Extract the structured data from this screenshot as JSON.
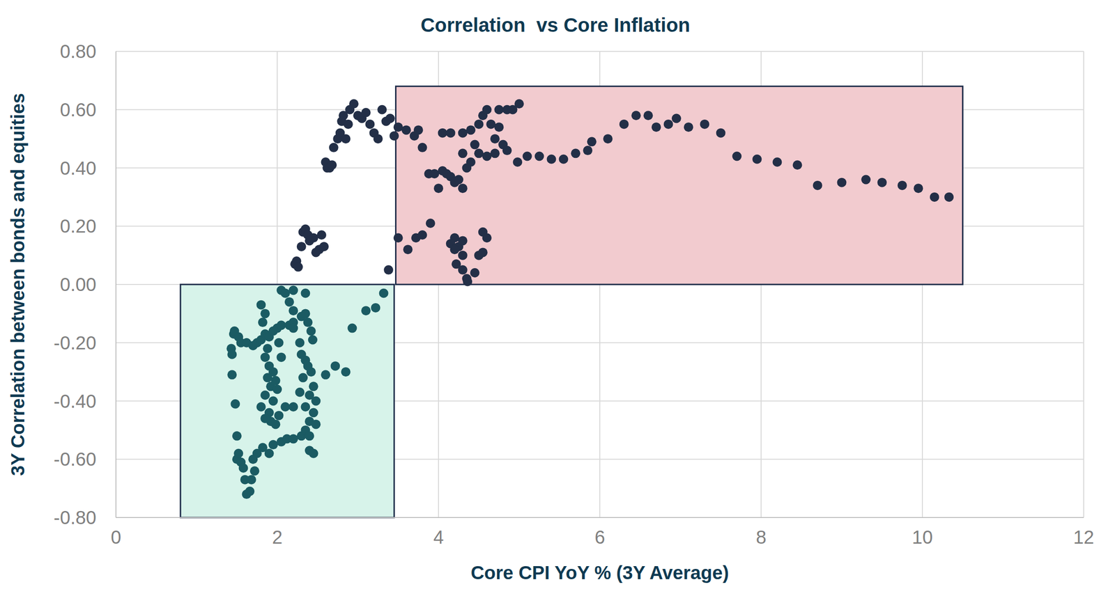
{
  "chart_data": {
    "type": "scatter",
    "title": "Correlation  vs Core Inflation",
    "x_label": "Core CPI YoY % (3Y Average)",
    "y_label": "3Y Correlation between bonds and equities",
    "xlim": [
      0,
      12
    ],
    "xticks": [
      0,
      2,
      4,
      6,
      8,
      10,
      12
    ],
    "ylim": [
      -0.8,
      0.8
    ],
    "yticks": [
      {
        "value": -0.8,
        "label": "-0.80"
      },
      {
        "value": -0.6,
        "label": "-0.60"
      },
      {
        "value": -0.4,
        "label": "-0.40"
      },
      {
        "value": -0.2,
        "label": "-0.20"
      },
      {
        "value": 0,
        "label": "0.00"
      },
      {
        "value": 0.2,
        "label": "0.20"
      },
      {
        "value": 0.4,
        "label": "0.40"
      },
      {
        "value": 0.6,
        "label": "0.60"
      },
      {
        "value": 0.8,
        "label": "0.80"
      }
    ],
    "grid": true,
    "marker": "circle",
    "regions": [
      {
        "x": [
          0.8,
          3.45
        ],
        "y": [
          -0.8,
          0
        ],
        "color": "#d7f3ea"
      },
      {
        "x": [
          3.47,
          10.5
        ],
        "y": [
          0,
          0.68
        ],
        "color": "#f2cbcf"
      }
    ],
    "series": [
      {
        "color": "#1b5b63",
        "x": [
          1.43,
          1.44,
          1.44,
          1.46,
          1.47,
          1.48,
          1.5,
          1.5,
          1.52,
          1.55,
          1.58,
          1.6,
          1.62,
          1.66,
          1.68,
          1.72,
          1.7,
          1.75,
          1.82,
          1.9,
          1.95,
          2.05,
          2.12,
          2.2,
          2.3,
          2.35,
          2.4,
          2.45,
          1.52,
          1.55,
          1.62,
          1.7,
          1.75,
          1.8,
          1.85,
          1.9,
          1.95,
          2.0,
          2.05,
          2.15,
          2.2,
          2.3,
          2.35,
          2.38,
          2.42,
          2.44,
          2.05,
          2.1,
          2.2,
          2.35,
          2.15,
          2.2,
          1.8,
          1.85,
          1.82,
          1.85,
          1.9,
          1.88,
          1.92,
          1.95,
          1.98,
          2.0,
          1.95,
          1.9,
          1.92,
          1.98,
          2.02,
          1.85,
          1.8,
          1.85,
          2.05,
          2.02,
          1.88,
          2.1,
          2.2,
          2.28,
          2.32,
          2.38,
          2.3,
          2.35,
          2.42,
          2.45,
          2.48,
          2.45,
          2.4,
          2.48,
          2.4,
          2.35,
          2.4,
          2.2,
          2.28,
          2.6,
          2.72,
          2.85,
          2.93,
          3.1,
          3.22,
          3.32
        ],
        "values": [
          -0.22,
          -0.24,
          -0.31,
          -0.17,
          -0.16,
          -0.41,
          -0.52,
          -0.6,
          -0.58,
          -0.61,
          -0.63,
          -0.67,
          -0.72,
          -0.71,
          -0.67,
          -0.64,
          -0.6,
          -0.58,
          -0.56,
          -0.58,
          -0.55,
          -0.54,
          -0.53,
          -0.53,
          -0.52,
          -0.5,
          -0.57,
          -0.58,
          -0.18,
          -0.2,
          -0.2,
          -0.21,
          -0.2,
          -0.19,
          -0.17,
          -0.18,
          -0.16,
          -0.15,
          -0.14,
          -0.14,
          -0.13,
          -0.11,
          -0.1,
          -0.13,
          -0.16,
          -0.19,
          -0.02,
          -0.03,
          -0.02,
          -0.03,
          -0.06,
          -0.09,
          -0.07,
          -0.1,
          -0.13,
          -0.25,
          -0.28,
          -0.32,
          -0.35,
          -0.3,
          -0.33,
          -0.36,
          -0.4,
          -0.44,
          -0.47,
          -0.48,
          -0.45,
          -0.38,
          -0.42,
          -0.46,
          -0.25,
          -0.2,
          -0.22,
          -0.42,
          -0.42,
          -0.37,
          -0.32,
          -0.28,
          -0.24,
          -0.26,
          -0.3,
          -0.35,
          -0.4,
          -0.44,
          -0.47,
          -0.48,
          -0.52,
          -0.42,
          -0.38,
          -0.15,
          -0.2,
          -0.31,
          -0.28,
          -0.3,
          -0.15,
          -0.09,
          -0.08,
          -0.03
        ]
      },
      {
        "color": "#232f47",
        "x": [
          2.22,
          2.24,
          2.26,
          2.3,
          2.32,
          2.35,
          2.38,
          2.4,
          2.45,
          2.48,
          2.52,
          2.55,
          2.58,
          2.6,
          2.62,
          2.65,
          2.68,
          2.7,
          2.75,
          2.78,
          2.8,
          2.82,
          2.85,
          2.88,
          2.9,
          2.95,
          3.0,
          3.05,
          3.1,
          3.15,
          3.2,
          3.25,
          3.3,
          3.35,
          3.4,
          3.45,
          3.38,
          3.5,
          3.6,
          3.7,
          3.75,
          3.8,
          3.5,
          3.62,
          3.72,
          3.8,
          3.9,
          3.88,
          3.95,
          4.0,
          4.05,
          4.1,
          4.15,
          4.2,
          4.25,
          4.3,
          4.05,
          4.15,
          4.3,
          4.4,
          4.5,
          4.55,
          4.6,
          4.65,
          4.7,
          4.75,
          4.8,
          4.85,
          4.75,
          4.85,
          4.92,
          5.0,
          4.5,
          4.4,
          4.35,
          4.45,
          4.3,
          4.6,
          4.7,
          4.2,
          4.25,
          4.3,
          4.22,
          4.3,
          4.35,
          4.36,
          4.45,
          4.5,
          4.55,
          4.55,
          4.6,
          4.3,
          4.15,
          4.2,
          4.98,
          5.1,
          5.25,
          5.4,
          5.55,
          5.7,
          5.85,
          5.9,
          6.1,
          6.3,
          6.45,
          6.6,
          6.7,
          6.85,
          6.95,
          7.1,
          7.3,
          7.5,
          7.7,
          7.95,
          8.2,
          8.45,
          8.7,
          9.0,
          9.3,
          9.5,
          9.75,
          9.95,
          10.15,
          10.33
        ],
        "values": [
          0.07,
          0.08,
          0.06,
          0.13,
          0.18,
          0.19,
          0.17,
          0.15,
          0.16,
          0.11,
          0.12,
          0.17,
          0.13,
          0.42,
          0.4,
          0.4,
          0.41,
          0.47,
          0.5,
          0.52,
          0.56,
          0.58,
          0.5,
          0.55,
          0.6,
          0.62,
          0.58,
          0.57,
          0.59,
          0.55,
          0.52,
          0.5,
          0.6,
          0.56,
          0.57,
          0.51,
          0.05,
          0.54,
          0.53,
          0.51,
          0.53,
          0.47,
          0.16,
          0.12,
          0.16,
          0.17,
          0.21,
          0.38,
          0.38,
          0.33,
          0.39,
          0.38,
          0.37,
          0.35,
          0.36,
          0.33,
          0.52,
          0.52,
          0.52,
          0.53,
          0.55,
          0.58,
          0.6,
          0.55,
          0.5,
          0.54,
          0.48,
          0.46,
          0.6,
          0.6,
          0.6,
          0.62,
          0.45,
          0.42,
          0.4,
          0.48,
          0.45,
          0.44,
          0.45,
          0.16,
          0.13,
          0.1,
          0.07,
          0.05,
          0.02,
          0.01,
          0.04,
          0.1,
          0.11,
          0.18,
          0.16,
          0.15,
          0.14,
          0.12,
          0.42,
          0.44,
          0.44,
          0.43,
          0.43,
          0.45,
          0.46,
          0.49,
          0.5,
          0.55,
          0.58,
          0.58,
          0.54,
          0.55,
          0.57,
          0.54,
          0.55,
          0.52,
          0.44,
          0.43,
          0.42,
          0.41,
          0.34,
          0.35,
          0.36,
          0.35,
          0.34,
          0.33,
          0.3,
          0.3
        ]
      }
    ]
  }
}
